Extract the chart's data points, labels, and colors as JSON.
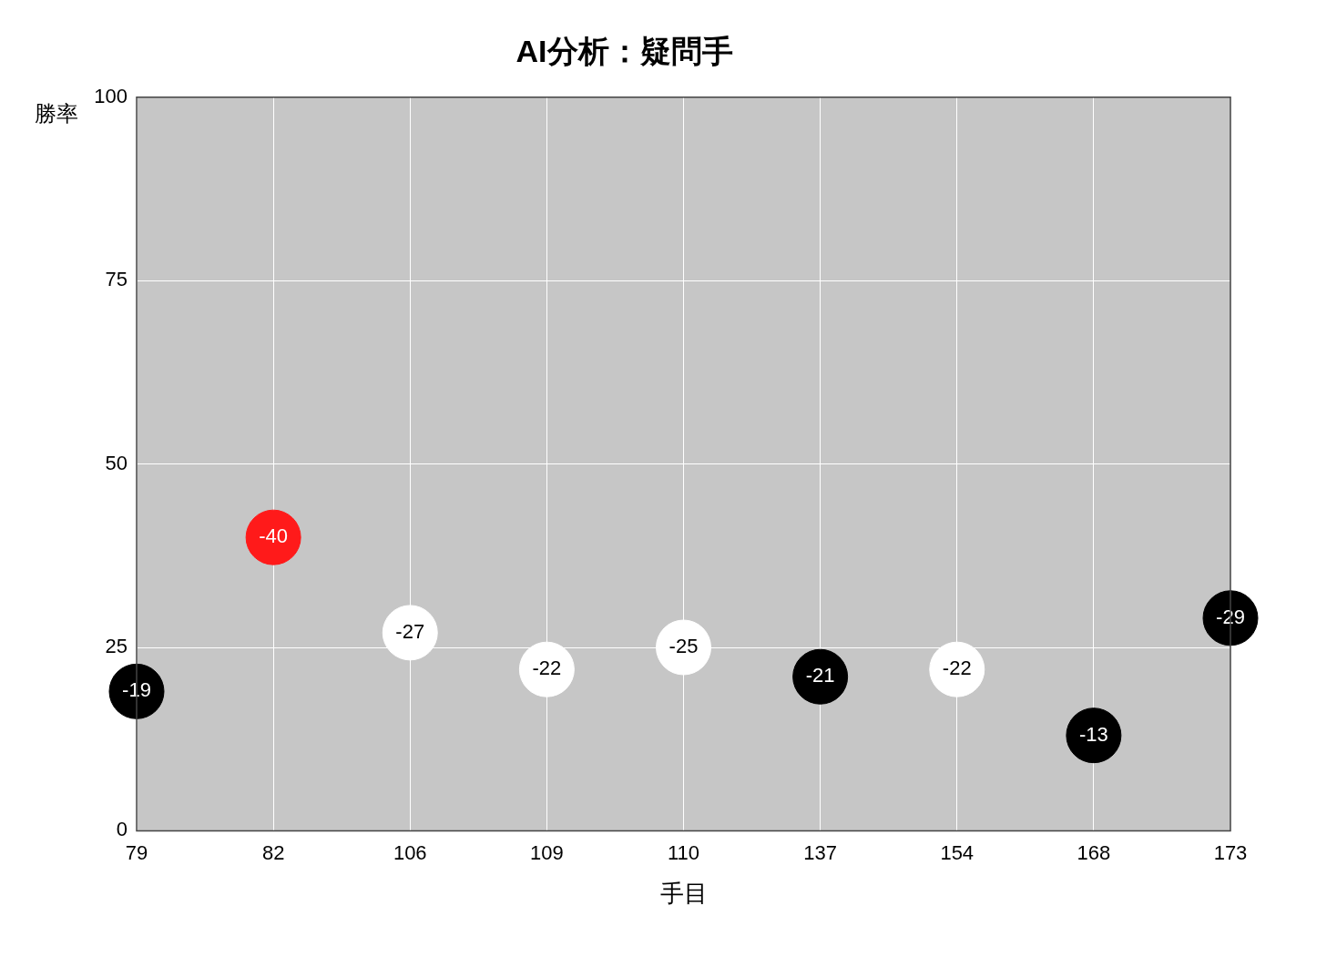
{
  "chart_data": {
    "type": "scatter",
    "title": "AI分析：疑問手",
    "xlabel": "手目",
    "ylabel": "勝率",
    "categories": [
      "79",
      "82",
      "106",
      "109",
      "110",
      "137",
      "154",
      "168",
      "173"
    ],
    "values": [
      19,
      40,
      27,
      22,
      25,
      21,
      22,
      13,
      29
    ],
    "colors": [
      "#000000",
      "#ff1a1a",
      "#ffffff",
      "#ffffff",
      "#ffffff",
      "#000000",
      "#ffffff",
      "#000000",
      "#000000"
    ],
    "annotations": [
      {
        "text": "-19",
        "x": "79",
        "y": 19
      },
      {
        "text": "-40",
        "x": "82",
        "y": 40
      },
      {
        "text": "-27",
        "x": "106",
        "y": 27
      },
      {
        "text": "-22",
        "x": "109",
        "y": 22
      },
      {
        "text": "-25",
        "x": "110",
        "y": 25
      },
      {
        "text": "-21",
        "x": "137",
        "y": 21
      },
      {
        "text": "-22",
        "x": "154",
        "y": 22
      },
      {
        "text": "-13",
        "x": "168",
        "y": 13
      },
      {
        "text": "-29",
        "x": "173",
        "y": 29
      }
    ],
    "ylim": [
      0,
      100
    ],
    "yticks": [
      0,
      25,
      50,
      75,
      100
    ],
    "grid": true,
    "legend": false,
    "marker": "circle"
  }
}
